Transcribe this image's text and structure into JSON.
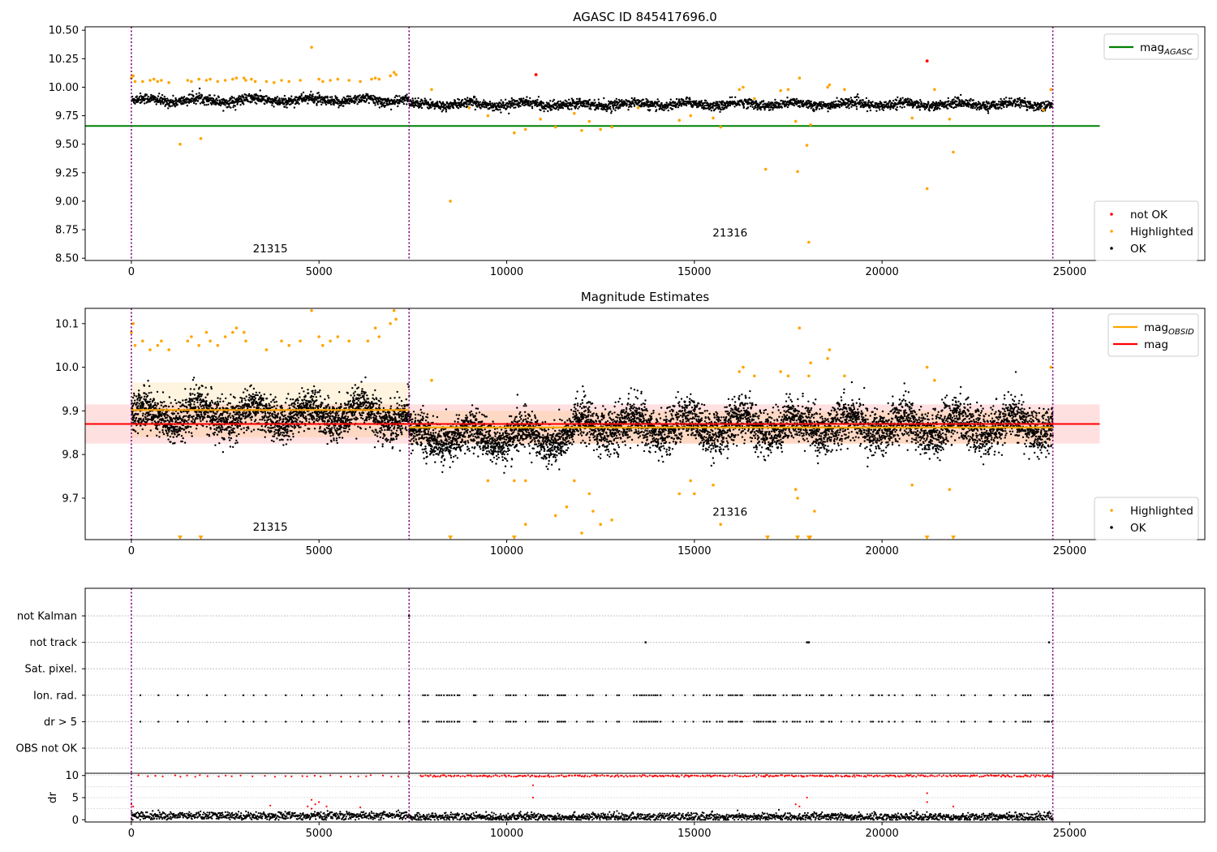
{
  "figure_title": "AGASC ID 845417696.0",
  "chart_data": [
    {
      "type": "scatter",
      "title": "AGASC ID 845417696.0",
      "xlim": [
        -1230,
        28600
      ],
      "ylim": [
        8.48,
        10.53
      ],
      "xticks": [
        0,
        5000,
        10000,
        15000,
        20000,
        25000
      ],
      "yticks": [
        8.5,
        8.75,
        9.0,
        9.25,
        9.5,
        9.75,
        10.0,
        10.25,
        10.5
      ],
      "ytick_labels": [
        "8.50",
        "8.75",
        "9.00",
        "9.25",
        "9.50",
        "9.75",
        "10.00",
        "10.25",
        "10.50"
      ],
      "obsid_boundaries": [
        0,
        7400,
        24550
      ],
      "obsid_labels": [
        {
          "text": "21315",
          "x": 3700,
          "y": 8.55
        },
        {
          "text": "21316",
          "x": 15950,
          "y": 8.69
        }
      ],
      "mag_agasc": 9.66,
      "mag_agasc_xrange": [
        -1230,
        25800
      ],
      "ok_segments": [
        {
          "x0": 0,
          "x1": 7400,
          "center": 9.885,
          "spread": 0.05
        },
        {
          "x0": 7400,
          "x1": 24550,
          "center": 9.85,
          "spread": 0.045
        }
      ],
      "highlighted_points": [
        [
          0,
          10.08
        ],
        [
          50,
          10.1
        ],
        [
          100,
          10.05
        ],
        [
          300,
          10.05
        ],
        [
          500,
          10.06
        ],
        [
          600,
          10.07
        ],
        [
          700,
          10.05
        ],
        [
          800,
          10.06
        ],
        [
          1000,
          10.04
        ],
        [
          1300,
          9.5
        ],
        [
          1500,
          10.06
        ],
        [
          1600,
          10.05
        ],
        [
          1800,
          10.07
        ],
        [
          1850,
          9.55
        ],
        [
          2000,
          10.06
        ],
        [
          2100,
          10.07
        ],
        [
          2300,
          10.05
        ],
        [
          2500,
          10.06
        ],
        [
          2700,
          10.07
        ],
        [
          2800,
          10.08
        ],
        [
          3000,
          10.08
        ],
        [
          3050,
          10.06
        ],
        [
          3200,
          10.07
        ],
        [
          3300,
          10.05
        ],
        [
          3600,
          10.05
        ],
        [
          3800,
          10.04
        ],
        [
          4000,
          10.06
        ],
        [
          4200,
          10.05
        ],
        [
          4500,
          10.06
        ],
        [
          4800,
          10.35
        ],
        [
          5000,
          10.07
        ],
        [
          5100,
          10.05
        ],
        [
          5300,
          10.06
        ],
        [
          5500,
          10.07
        ],
        [
          5800,
          10.06
        ],
        [
          6100,
          10.05
        ],
        [
          6400,
          10.07
        ],
        [
          6500,
          10.08
        ],
        [
          6600,
          10.07
        ],
        [
          6900,
          10.1
        ],
        [
          7000,
          10.13
        ],
        [
          7050,
          10.11
        ],
        [
          8000,
          9.98
        ],
        [
          8500,
          9.0
        ],
        [
          9000,
          9.82
        ],
        [
          9500,
          9.75
        ],
        [
          10200,
          9.6
        ],
        [
          10500,
          9.63
        ],
        [
          10900,
          9.72
        ],
        [
          11300,
          9.65
        ],
        [
          11800,
          9.77
        ],
        [
          12000,
          9.62
        ],
        [
          12200,
          9.7
        ],
        [
          12500,
          9.63
        ],
        [
          12800,
          9.65
        ],
        [
          13500,
          9.82
        ],
        [
          14600,
          9.71
        ],
        [
          14900,
          9.75
        ],
        [
          15500,
          9.73
        ],
        [
          15700,
          9.65
        ],
        [
          16200,
          9.98
        ],
        [
          16300,
          10.0
        ],
        [
          16600,
          9.9
        ],
        [
          16900,
          9.28
        ],
        [
          17300,
          9.97
        ],
        [
          17500,
          9.98
        ],
        [
          17700,
          9.7
        ],
        [
          17750,
          9.26
        ],
        [
          17800,
          10.08
        ],
        [
          18000,
          9.49
        ],
        [
          18050,
          8.64
        ],
        [
          18100,
          9.67
        ],
        [
          18550,
          10.0
        ],
        [
          18600,
          10.02
        ],
        [
          19000,
          9.98
        ],
        [
          20800,
          9.73
        ],
        [
          21200,
          9.11
        ],
        [
          21400,
          9.98
        ],
        [
          21800,
          9.72
        ],
        [
          21900,
          9.43
        ],
        [
          24300,
          9.8
        ],
        [
          24500,
          9.98
        ]
      ],
      "not_ok_points": [
        [
          10780,
          10.11
        ],
        [
          21200,
          10.23
        ]
      ],
      "legend_top": [
        {
          "label": "mag",
          "subscript": "AGASC",
          "color": "#008000"
        }
      ],
      "legend_bottom": [
        {
          "label": "not OK",
          "color": "#ff0000"
        },
        {
          "label": "Highlighted",
          "color": "#ffa500"
        },
        {
          "label": "OK",
          "color": "#000000"
        }
      ]
    },
    {
      "type": "scatter",
      "title": "Magnitude Estimates",
      "xlim": [
        -1230,
        28600
      ],
      "ylim": [
        9.605,
        10.135
      ],
      "xticks": [
        0,
        5000,
        10000,
        15000,
        20000,
        25000
      ],
      "yticks": [
        9.7,
        9.8,
        9.9,
        10.0,
        10.1
      ],
      "ytick_labels": [
        "9.7",
        "9.8",
        "9.9",
        "10.0",
        "10.1"
      ],
      "obsid_boundaries": [
        0,
        7400,
        24550
      ],
      "obsid_labels": [
        {
          "text": "21315",
          "x": 3700,
          "y": 9.625
        },
        {
          "text": "21316",
          "x": 15950,
          "y": 9.66
        }
      ],
      "mag": 9.87,
      "mag_band": [
        9.825,
        9.915
      ],
      "mag_xrange": [
        -1230,
        25800
      ],
      "mag_obsid": [
        {
          "x0": 0,
          "x1": 7400,
          "value": 9.902,
          "band": [
            9.84,
            9.965
          ]
        },
        {
          "x0": 7400,
          "x1": 24550,
          "value": 9.862,
          "band": [
            9.825,
            9.9
          ]
        }
      ],
      "ok_segments": [
        {
          "x0": 0,
          "x1": 7400,
          "center": 9.89,
          "spread": 0.05
        },
        {
          "x0": 7400,
          "x1": 11800,
          "center": 9.84,
          "spread": 0.05
        },
        {
          "x0": 11800,
          "x1": 24550,
          "center": 9.865,
          "spread": 0.055
        }
      ],
      "highlighted_points": [
        [
          0,
          10.08
        ],
        [
          50,
          10.1
        ],
        [
          100,
          10.05
        ],
        [
          300,
          10.06
        ],
        [
          500,
          10.04
        ],
        [
          700,
          10.05
        ],
        [
          800,
          10.06
        ],
        [
          1000,
          10.04
        ],
        [
          1500,
          10.06
        ],
        [
          1600,
          10.07
        ],
        [
          1800,
          10.05
        ],
        [
          2000,
          10.08
        ],
        [
          2100,
          10.06
        ],
        [
          2300,
          10.05
        ],
        [
          2500,
          10.07
        ],
        [
          2700,
          10.08
        ],
        [
          2800,
          10.09
        ],
        [
          3000,
          10.08
        ],
        [
          3050,
          10.06
        ],
        [
          3600,
          10.04
        ],
        [
          4000,
          10.06
        ],
        [
          4200,
          10.05
        ],
        [
          4500,
          10.06
        ],
        [
          4800,
          10.13
        ],
        [
          5000,
          10.07
        ],
        [
          5100,
          10.05
        ],
        [
          5300,
          10.06
        ],
        [
          5500,
          10.07
        ],
        [
          5800,
          10.06
        ],
        [
          6300,
          10.06
        ],
        [
          6500,
          10.09
        ],
        [
          6600,
          10.07
        ],
        [
          6900,
          10.1
        ],
        [
          7000,
          10.13
        ],
        [
          7050,
          10.11
        ],
        [
          8000,
          9.97
        ],
        [
          9500,
          9.74
        ],
        [
          10200,
          9.74
        ],
        [
          10500,
          9.74
        ],
        [
          10500,
          9.64
        ],
        [
          11300,
          9.66
        ],
        [
          11600,
          9.68
        ],
        [
          11800,
          9.74
        ],
        [
          12000,
          9.62
        ],
        [
          12200,
          9.71
        ],
        [
          12300,
          9.67
        ],
        [
          12500,
          9.64
        ],
        [
          12800,
          9.65
        ],
        [
          14600,
          9.71
        ],
        [
          14900,
          9.74
        ],
        [
          15000,
          9.71
        ],
        [
          15500,
          9.73
        ],
        [
          15700,
          9.64
        ],
        [
          16200,
          9.99
        ],
        [
          16300,
          10.0
        ],
        [
          16600,
          9.98
        ],
        [
          17300,
          9.99
        ],
        [
          17500,
          9.98
        ],
        [
          17700,
          9.72
        ],
        [
          17800,
          10.09
        ],
        [
          17750,
          9.7
        ],
        [
          18050,
          9.98
        ],
        [
          18100,
          10.01
        ],
        [
          18200,
          9.67
        ],
        [
          18550,
          10.02
        ],
        [
          18600,
          10.04
        ],
        [
          19000,
          9.98
        ],
        [
          20800,
          9.73
        ],
        [
          21200,
          10.0
        ],
        [
          21400,
          9.97
        ],
        [
          21800,
          9.72
        ],
        [
          24500,
          10.0
        ]
      ],
      "off_scale_markers": [
        1300,
        1850,
        8500,
        10200,
        16950,
        17750,
        18050,
        18080,
        21200,
        21900
      ],
      "legend_top": [
        {
          "label": "mag",
          "subscript": "OBSID",
          "color": "#ffa500"
        },
        {
          "label": "mag",
          "subscript": "",
          "color": "#ff0000"
        }
      ],
      "legend_bottom": [
        {
          "label": "Highlighted",
          "color": "#ffa500"
        },
        {
          "label": "OK",
          "color": "#000000"
        }
      ]
    },
    {
      "type": "scatter",
      "title": "",
      "xlim": [
        -1230,
        28600
      ],
      "obsid_boundaries": [
        0,
        7400,
        24550
      ],
      "flag_rows": [
        "not Kalman",
        "not track",
        "Sat. pixel.",
        "Ion. rad.",
        "dr > 5",
        "OBS not OK"
      ],
      "flag_events": {
        "not Kalman": [
          7400
        ],
        "not track": [
          13700,
          18000,
          18050,
          24450
        ],
        "Sat. pixel.": [],
        "OBS not OK": []
      },
      "dr_ylim": [
        -0.5,
        10.5
      ],
      "dr_yticks": [
        0,
        5,
        10
      ],
      "dr_ylabel": "dr",
      "dr_baseline": 0.8,
      "dr_outliers": [
        [
          0,
          3.5
        ],
        [
          50,
          3
        ],
        [
          3700,
          3.2
        ],
        [
          4700,
          3
        ],
        [
          4800,
          2.5
        ],
        [
          4800,
          4.5
        ],
        [
          4900,
          3.5
        ],
        [
          5000,
          4
        ],
        [
          5200,
          3
        ],
        [
          6100,
          2.8
        ],
        [
          10700,
          7.8
        ],
        [
          10700,
          5
        ],
        [
          17700,
          3.5
        ],
        [
          17800,
          3
        ],
        [
          18000,
          5
        ],
        [
          21200,
          6
        ],
        [
          21200,
          4
        ],
        [
          21900,
          3
        ]
      ]
    }
  ]
}
